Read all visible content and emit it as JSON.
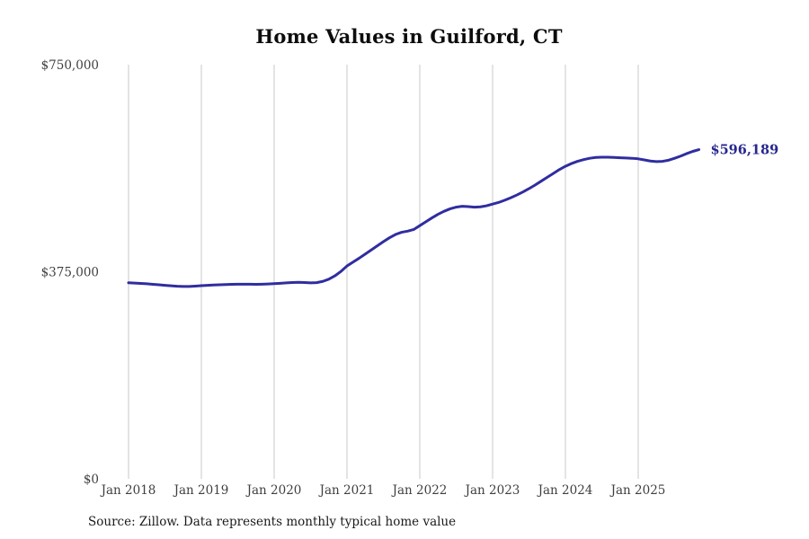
{
  "title": "Home Values in Guilford, CT",
  "source_note": "Source: Zillow. Data represents monthly typical home value",
  "colors": {
    "line": "#302da0",
    "end_label": "#28278f",
    "gridline": "#c9c9c9",
    "tick_label": "#3f3f3f",
    "title": "#0d0d0d",
    "source": "#1a1a1a",
    "background": "#ffffff"
  },
  "chart_data": {
    "type": "line",
    "title": "Home Values in Guilford, CT",
    "series_name": "Typical home value",
    "frequency": "monthly",
    "start_month": "2018-01",
    "end_month": "2025-11",
    "xlabel": "",
    "ylabel": "",
    "ylim": [
      0,
      750000
    ],
    "grid": "vertical-only",
    "legend": "none",
    "x_tick_labels": [
      "Jan 2018",
      "Jan 2019",
      "Jan 2020",
      "Jan 2021",
      "Jan 2022",
      "Jan 2023",
      "Jan 2024",
      "Jan 2025"
    ],
    "x_tick_month_indices": [
      0,
      12,
      24,
      36,
      48,
      60,
      72,
      84
    ],
    "y_ticks": [
      {
        "label": "$750,000",
        "value": 750000
      },
      {
        "label": "$375,000",
        "value": 375000
      },
      {
        "label": "$0",
        "value": 0
      }
    ],
    "last_value": 596189,
    "last_value_label": "$596,189",
    "values": [
      355000,
      354500,
      353900,
      353200,
      352300,
      351400,
      350400,
      349500,
      348700,
      348300,
      348400,
      349000,
      349800,
      350400,
      351000,
      351500,
      351900,
      352200,
      352400,
      352500,
      352400,
      352300,
      352500,
      352900,
      353400,
      354100,
      354900,
      355500,
      355800,
      355400,
      354900,
      355300,
      357500,
      361500,
      367500,
      375500,
      385500,
      392500,
      399500,
      407000,
      414500,
      422000,
      429500,
      436500,
      442500,
      446500,
      448500,
      451500,
      458500,
      465500,
      472500,
      479000,
      484500,
      489000,
      492000,
      493500,
      493000,
      492000,
      492500,
      494500,
      497500,
      500500,
      504500,
      509000,
      514000,
      519500,
      525500,
      532000,
      539000,
      546000,
      553000,
      560000,
      566000,
      571000,
      575000,
      578000,
      580500,
      582000,
      582500,
      582500,
      582000,
      581500,
      581000,
      580500,
      579500,
      577500,
      575500,
      574500,
      575000,
      577000,
      580500,
      584500,
      589000,
      593000,
      596189
    ]
  }
}
